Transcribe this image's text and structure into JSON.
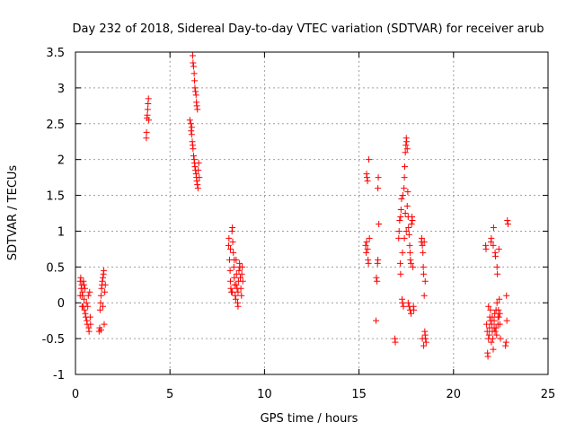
{
  "chart_data": {
    "type": "scatter",
    "title": "Day 232 of 2018, Sidereal Day-to-day VTEC variation (SDTVAR) for receiver arub",
    "xlabel": "GPS time / hours",
    "ylabel": "SDTVAR / TECUs",
    "xlim": [
      0,
      25
    ],
    "ylim": [
      -1,
      3.5
    ],
    "x_ticks": [
      0,
      5,
      10,
      15,
      20,
      25
    ],
    "x_tick_labels": [
      "0",
      "5",
      "10",
      "15",
      "20",
      "25"
    ],
    "y_ticks": [
      -1,
      -0.5,
      0,
      0.5,
      1,
      1.5,
      2,
      2.5,
      3,
      3.5
    ],
    "y_tick_labels": [
      "-1",
      "-0.5",
      "0",
      "0.5",
      "1",
      "1.5",
      "2",
      "2.5",
      "3",
      "3.5"
    ],
    "grid": true,
    "marker": "+",
    "colors": {
      "series": "#ff0000",
      "grid": "#a0a0a0",
      "axis": "#000000"
    },
    "series": [
      {
        "name": "SDTVAR",
        "points": [
          [
            0.25,
            0.3
          ],
          [
            0.28,
            0.35
          ],
          [
            0.3,
            0.2
          ],
          [
            0.33,
            0.25
          ],
          [
            0.35,
            0.1
          ],
          [
            0.38,
            0.15
          ],
          [
            0.4,
            -0.05
          ],
          [
            0.42,
            0.3
          ],
          [
            0.45,
            0.05
          ],
          [
            0.48,
            -0.1
          ],
          [
            0.5,
            0.2
          ],
          [
            0.52,
            -0.15
          ],
          [
            0.55,
            -0.2
          ],
          [
            0.58,
            0.0
          ],
          [
            0.6,
            -0.25
          ],
          [
            0.62,
            -0.3
          ],
          [
            0.65,
            -0.05
          ],
          [
            0.68,
            0.1
          ],
          [
            0.7,
            -0.35
          ],
          [
            0.72,
            -0.4
          ],
          [
            0.75,
            0.15
          ],
          [
            0.78,
            -0.2
          ],
          [
            0.8,
            -0.3
          ],
          [
            0.25,
            0.1
          ],
          [
            0.35,
            -0.05
          ],
          [
            0.45,
            0.25
          ],
          [
            1.25,
            -0.4
          ],
          [
            1.28,
            -0.35
          ],
          [
            1.3,
            -0.1
          ],
          [
            1.33,
            0.0
          ],
          [
            1.35,
            0.1
          ],
          [
            1.38,
            0.2
          ],
          [
            1.4,
            0.25
          ],
          [
            1.42,
            0.3
          ],
          [
            1.45,
            0.35
          ],
          [
            1.48,
            0.4
          ],
          [
            1.5,
            0.45
          ],
          [
            1.52,
            -0.3
          ],
          [
            1.55,
            0.15
          ],
          [
            1.58,
            0.25
          ],
          [
            1.35,
            -0.38
          ],
          [
            1.45,
            -0.05
          ],
          [
            3.75,
            2.3
          ],
          [
            3.76,
            2.38
          ],
          [
            3.78,
            2.58
          ],
          [
            3.8,
            2.62
          ],
          [
            3.82,
            2.7
          ],
          [
            3.84,
            2.78
          ],
          [
            3.86,
            2.85
          ],
          [
            3.88,
            2.55
          ],
          [
            6.05,
            2.55
          ],
          [
            6.1,
            2.5
          ],
          [
            6.12,
            2.4
          ],
          [
            6.15,
            2.35
          ],
          [
            6.18,
            2.25
          ],
          [
            6.2,
            3.45
          ],
          [
            6.22,
            3.35
          ],
          [
            6.25,
            3.3
          ],
          [
            6.28,
            3.2
          ],
          [
            6.3,
            3.1
          ],
          [
            6.32,
            3.0
          ],
          [
            6.35,
            2.95
          ],
          [
            6.38,
            2.9
          ],
          [
            6.4,
            2.8
          ],
          [
            6.42,
            2.75
          ],
          [
            6.45,
            2.7
          ],
          [
            6.22,
            2.15
          ],
          [
            6.25,
            2.05
          ],
          [
            6.28,
            2.0
          ],
          [
            6.3,
            1.95
          ],
          [
            6.32,
            1.9
          ],
          [
            6.35,
            1.85
          ],
          [
            6.38,
            1.8
          ],
          [
            6.4,
            1.75
          ],
          [
            6.42,
            1.7
          ],
          [
            6.45,
            1.65
          ],
          [
            6.48,
            1.6
          ],
          [
            6.5,
            1.85
          ],
          [
            6.52,
            1.95
          ],
          [
            6.55,
            1.75
          ],
          [
            6.15,
            2.45
          ],
          [
            6.2,
            2.2
          ],
          [
            8.1,
            0.8
          ],
          [
            8.12,
            0.9
          ],
          [
            8.15,
            0.6
          ],
          [
            8.18,
            0.45
          ],
          [
            8.2,
            0.3
          ],
          [
            8.22,
            0.2
          ],
          [
            8.25,
            0.15
          ],
          [
            8.28,
            1.0
          ],
          [
            8.3,
            1.05
          ],
          [
            8.32,
            0.85
          ],
          [
            8.35,
            0.7
          ],
          [
            8.38,
            0.5
          ],
          [
            8.4,
            0.35
          ],
          [
            8.42,
            0.25
          ],
          [
            8.45,
            0.1
          ],
          [
            8.48,
            0.05
          ],
          [
            8.5,
            0.6
          ],
          [
            8.52,
            0.4
          ],
          [
            8.55,
            0.2
          ],
          [
            8.58,
            0.0
          ],
          [
            8.6,
            -0.05
          ],
          [
            8.62,
            0.3
          ],
          [
            8.65,
            0.45
          ],
          [
            8.68,
            0.55
          ],
          [
            8.7,
            0.5
          ],
          [
            8.72,
            0.35
          ],
          [
            8.75,
            0.2
          ],
          [
            8.78,
            0.1
          ],
          [
            8.8,
            0.4
          ],
          [
            8.82,
            0.5
          ],
          [
            8.85,
            0.3
          ],
          [
            8.2,
            0.75
          ],
          [
            8.4,
            0.6
          ],
          [
            8.6,
            0.15
          ],
          [
            8.3,
            0.15
          ],
          [
            8.5,
            0.25
          ],
          [
            15.35,
            0.8
          ],
          [
            15.38,
            0.7
          ],
          [
            15.4,
            1.8
          ],
          [
            15.42,
            1.75
          ],
          [
            15.45,
            1.7
          ],
          [
            15.48,
            0.6
          ],
          [
            15.5,
            0.55
          ],
          [
            15.52,
            2.0
          ],
          [
            15.55,
            0.9
          ],
          [
            15.4,
            0.85
          ],
          [
            15.45,
            0.75
          ],
          [
            15.9,
            -0.25
          ],
          [
            15.92,
            0.35
          ],
          [
            15.95,
            0.3
          ],
          [
            15.98,
            0.55
          ],
          [
            16.0,
            1.6
          ],
          [
            16.02,
            1.75
          ],
          [
            16.05,
            1.1
          ],
          [
            16.0,
            0.6
          ],
          [
            16.9,
            -0.5
          ],
          [
            16.92,
            -0.55
          ],
          [
            17.1,
            0.9
          ],
          [
            17.12,
            1.0
          ],
          [
            17.15,
            1.15
          ],
          [
            17.18,
            0.55
          ],
          [
            17.2,
            0.4
          ],
          [
            17.22,
            1.3
          ],
          [
            17.25,
            1.45
          ],
          [
            17.28,
            0.05
          ],
          [
            17.3,
            0.0
          ],
          [
            17.32,
            1.5
          ],
          [
            17.35,
            -0.05
          ],
          [
            17.38,
            1.6
          ],
          [
            17.4,
            1.75
          ],
          [
            17.42,
            1.9
          ],
          [
            17.45,
            2.1
          ],
          [
            17.48,
            2.2
          ],
          [
            17.5,
            2.3
          ],
          [
            17.52,
            2.25
          ],
          [
            17.55,
            2.15
          ],
          [
            17.58,
            1.55
          ],
          [
            17.6,
            1.2
          ],
          [
            17.62,
            1.05
          ],
          [
            17.65,
            0.95
          ],
          [
            17.68,
            0.8
          ],
          [
            17.7,
            0.7
          ],
          [
            17.72,
            0.6
          ],
          [
            17.75,
            0.55
          ],
          [
            17.78,
            1.1
          ],
          [
            17.8,
            1.2
          ],
          [
            17.82,
            1.15
          ],
          [
            17.85,
            0.5
          ],
          [
            17.88,
            -0.05
          ],
          [
            17.9,
            -0.1
          ],
          [
            17.6,
            0.0
          ],
          [
            17.65,
            -0.05
          ],
          [
            17.7,
            -0.1
          ],
          [
            17.75,
            -0.15
          ],
          [
            17.4,
            0.9
          ],
          [
            17.5,
            1.0
          ],
          [
            17.3,
            0.7
          ],
          [
            17.2,
            1.2
          ],
          [
            17.55,
            1.35
          ],
          [
            17.45,
            1.25
          ],
          [
            18.3,
            0.85
          ],
          [
            18.32,
            0.9
          ],
          [
            18.35,
            0.8
          ],
          [
            18.38,
            0.7
          ],
          [
            18.4,
            0.5
          ],
          [
            18.42,
            0.4
          ],
          [
            18.45,
            0.1
          ],
          [
            18.48,
            -0.4
          ],
          [
            18.5,
            -0.45
          ],
          [
            18.52,
            -0.5
          ],
          [
            18.55,
            -0.55
          ],
          [
            18.45,
            0.85
          ],
          [
            18.5,
            0.3
          ],
          [
            18.35,
            -0.5
          ],
          [
            18.42,
            -0.6
          ],
          [
            21.7,
            0.8
          ],
          [
            21.72,
            0.75
          ],
          [
            21.75,
            -0.3
          ],
          [
            21.78,
            -0.4
          ],
          [
            21.8,
            -0.7
          ],
          [
            21.82,
            -0.75
          ],
          [
            21.85,
            -0.5
          ],
          [
            21.88,
            -0.45
          ],
          [
            21.9,
            -0.35
          ],
          [
            21.92,
            -0.2
          ],
          [
            21.95,
            -0.1
          ],
          [
            21.98,
            0.85
          ],
          [
            22.0,
            0.9
          ],
          [
            22.02,
            -0.3
          ],
          [
            22.05,
            -0.4
          ],
          [
            22.08,
            -0.5
          ],
          [
            22.1,
            0.8
          ],
          [
            22.12,
            1.05
          ],
          [
            22.15,
            -0.25
          ],
          [
            22.18,
            -0.15
          ],
          [
            22.2,
            0.7
          ],
          [
            22.22,
            0.65
          ],
          [
            22.25,
            -0.35
          ],
          [
            22.28,
            -0.45
          ],
          [
            22.3,
            0.5
          ],
          [
            22.32,
            0.4
          ],
          [
            22.35,
            -0.2
          ],
          [
            22.38,
            -0.1
          ],
          [
            22.4,
            0.75
          ],
          [
            22.42,
            0.05
          ],
          [
            22.45,
            -0.3
          ],
          [
            22.48,
            -0.5
          ],
          [
            21.85,
            -0.05
          ],
          [
            21.95,
            -0.25
          ],
          [
            22.05,
            -0.2
          ],
          [
            22.15,
            -0.35
          ],
          [
            22.25,
            -0.1
          ],
          [
            22.35,
            -0.3
          ],
          [
            22.45,
            -0.15
          ],
          [
            22.0,
            -0.55
          ],
          [
            22.1,
            -0.65
          ],
          [
            22.2,
            -0.4
          ],
          [
            22.3,
            0.0
          ],
          [
            22.4,
            -0.2
          ],
          [
            22.75,
            -0.6
          ],
          [
            22.78,
            -0.55
          ],
          [
            22.8,
            0.1
          ],
          [
            22.82,
            -0.25
          ],
          [
            22.85,
            1.15
          ],
          [
            22.88,
            1.1
          ]
        ]
      }
    ]
  }
}
